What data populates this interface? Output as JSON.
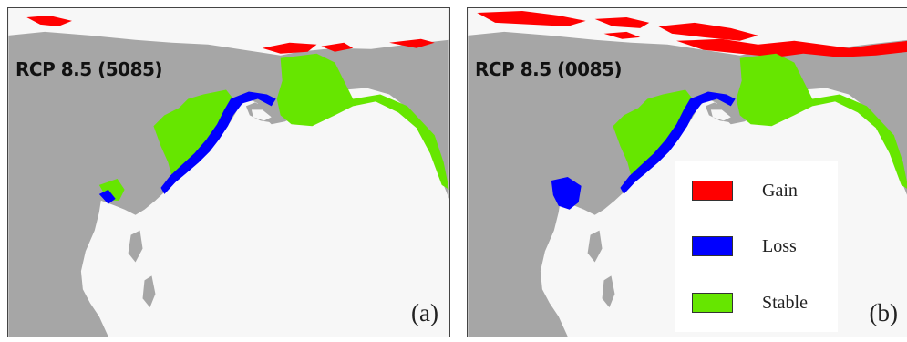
{
  "panels": [
    {
      "id": "a",
      "scenario": "RCP 8.5 (5085)",
      "label": "(a)"
    },
    {
      "id": "b",
      "scenario": "RCP 8.5 (0085)",
      "label": "(b)"
    }
  ],
  "legend": {
    "items": [
      {
        "label": "Gain",
        "color": "#ff0000"
      },
      {
        "label": "Loss",
        "color": "#0000ff"
      },
      {
        "label": "Stable",
        "color": "#66e600"
      }
    ]
  },
  "colors": {
    "land": "#a6a6a6",
    "ocean": "#f7f7f7",
    "ice": "#f7f7f7"
  }
}
